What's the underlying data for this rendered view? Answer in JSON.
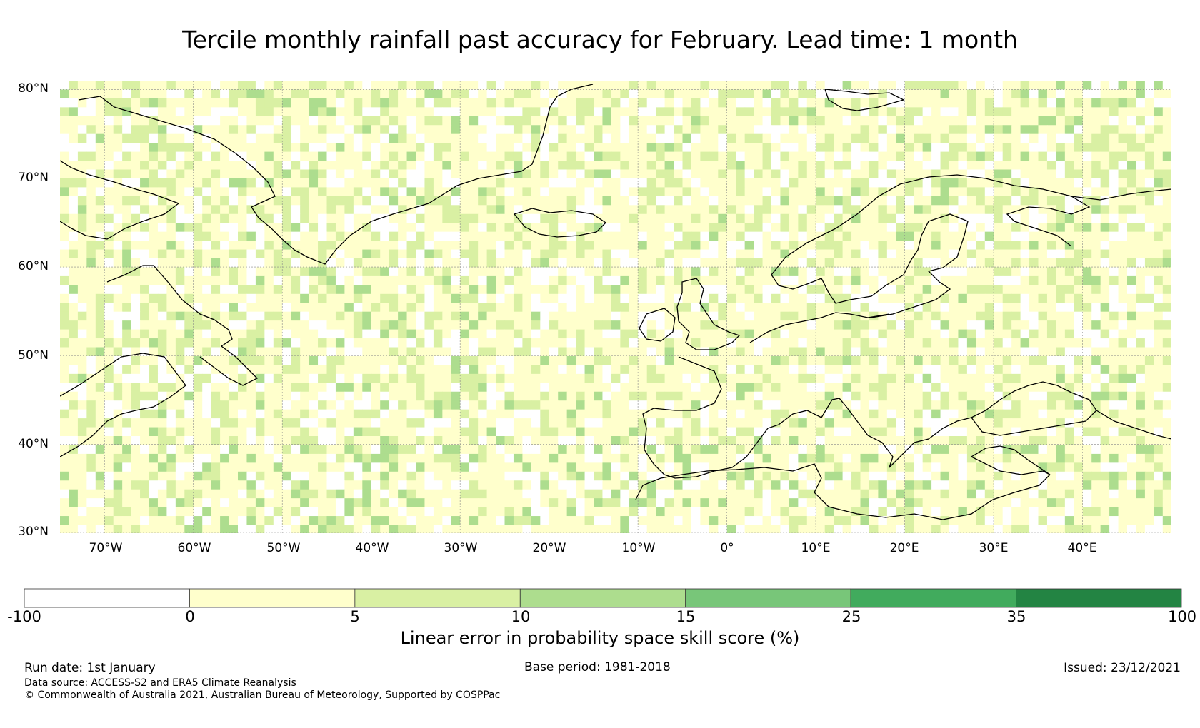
{
  "title": "Tercile monthly rainfall past accuracy for February. Lead time: 1 month",
  "map": {
    "lat_labels": [
      "80°N",
      "70°N",
      "60°N",
      "50°N",
      "40°N",
      "30°N"
    ],
    "lon_labels": [
      "70°W",
      "60°W",
      "50°W",
      "40°W",
      "30°W",
      "20°W",
      "10°W",
      "0°",
      "10°E",
      "20°E",
      "30°E",
      "40°E"
    ],
    "lat_range": [
      30,
      81
    ],
    "lon_range": [
      -75,
      50
    ],
    "grid": true,
    "ocean_pattern": "mostly 0–5% skill (pale yellow) with scattered 5–10% cells; patches of 10–15% near 30–40°N and northeast corner"
  },
  "colorbar": {
    "ticks": [
      "-100",
      "0",
      "5",
      "10",
      "15",
      "25",
      "35",
      "100"
    ],
    "colors": [
      "#ffffff",
      "#ffffcc",
      "#d9f0a3",
      "#addd8e",
      "#78c679",
      "#41ab5d",
      "#238443"
    ],
    "label": "Linear error in probability space skill score (%)"
  },
  "footer": {
    "run_date": "Run date: 1st January",
    "base_period": "Base period: 1981-2018",
    "issued": "Issued: 23/12/2021",
    "data_source": "Data source: ACCESS-S2 and ERA5 Climate Reanalysis",
    "copyright": "© Commonwealth of Australia 2021, Australian Bureau of Meteorology, Supported by COSPPac"
  }
}
